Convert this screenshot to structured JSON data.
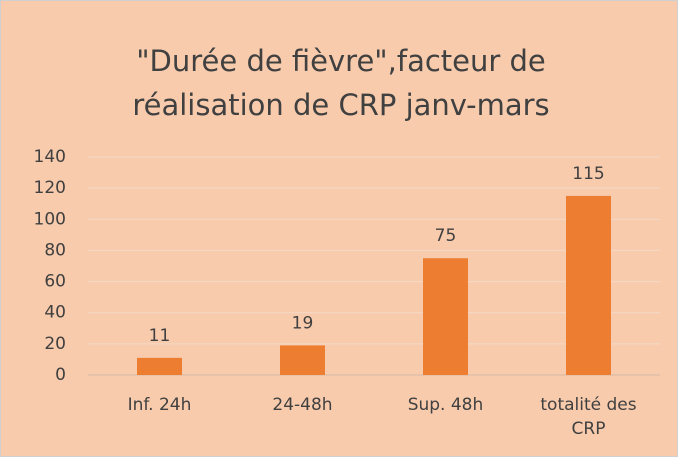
{
  "chart_data": {
    "type": "bar",
    "title": "\"Durée de fièvre\",facteur de réalisation de CRP janv-mars",
    "categories": [
      "Inf. 24h",
      "24-48h",
      "Sup. 48h",
      "totalité des CRP"
    ],
    "values": [
      11,
      19,
      75,
      115
    ],
    "color": "#ed7d31",
    "ylim": [
      0,
      140
    ],
    "yticks": [
      0,
      20,
      40,
      60,
      80,
      100,
      120,
      140
    ],
    "grid": true
  }
}
